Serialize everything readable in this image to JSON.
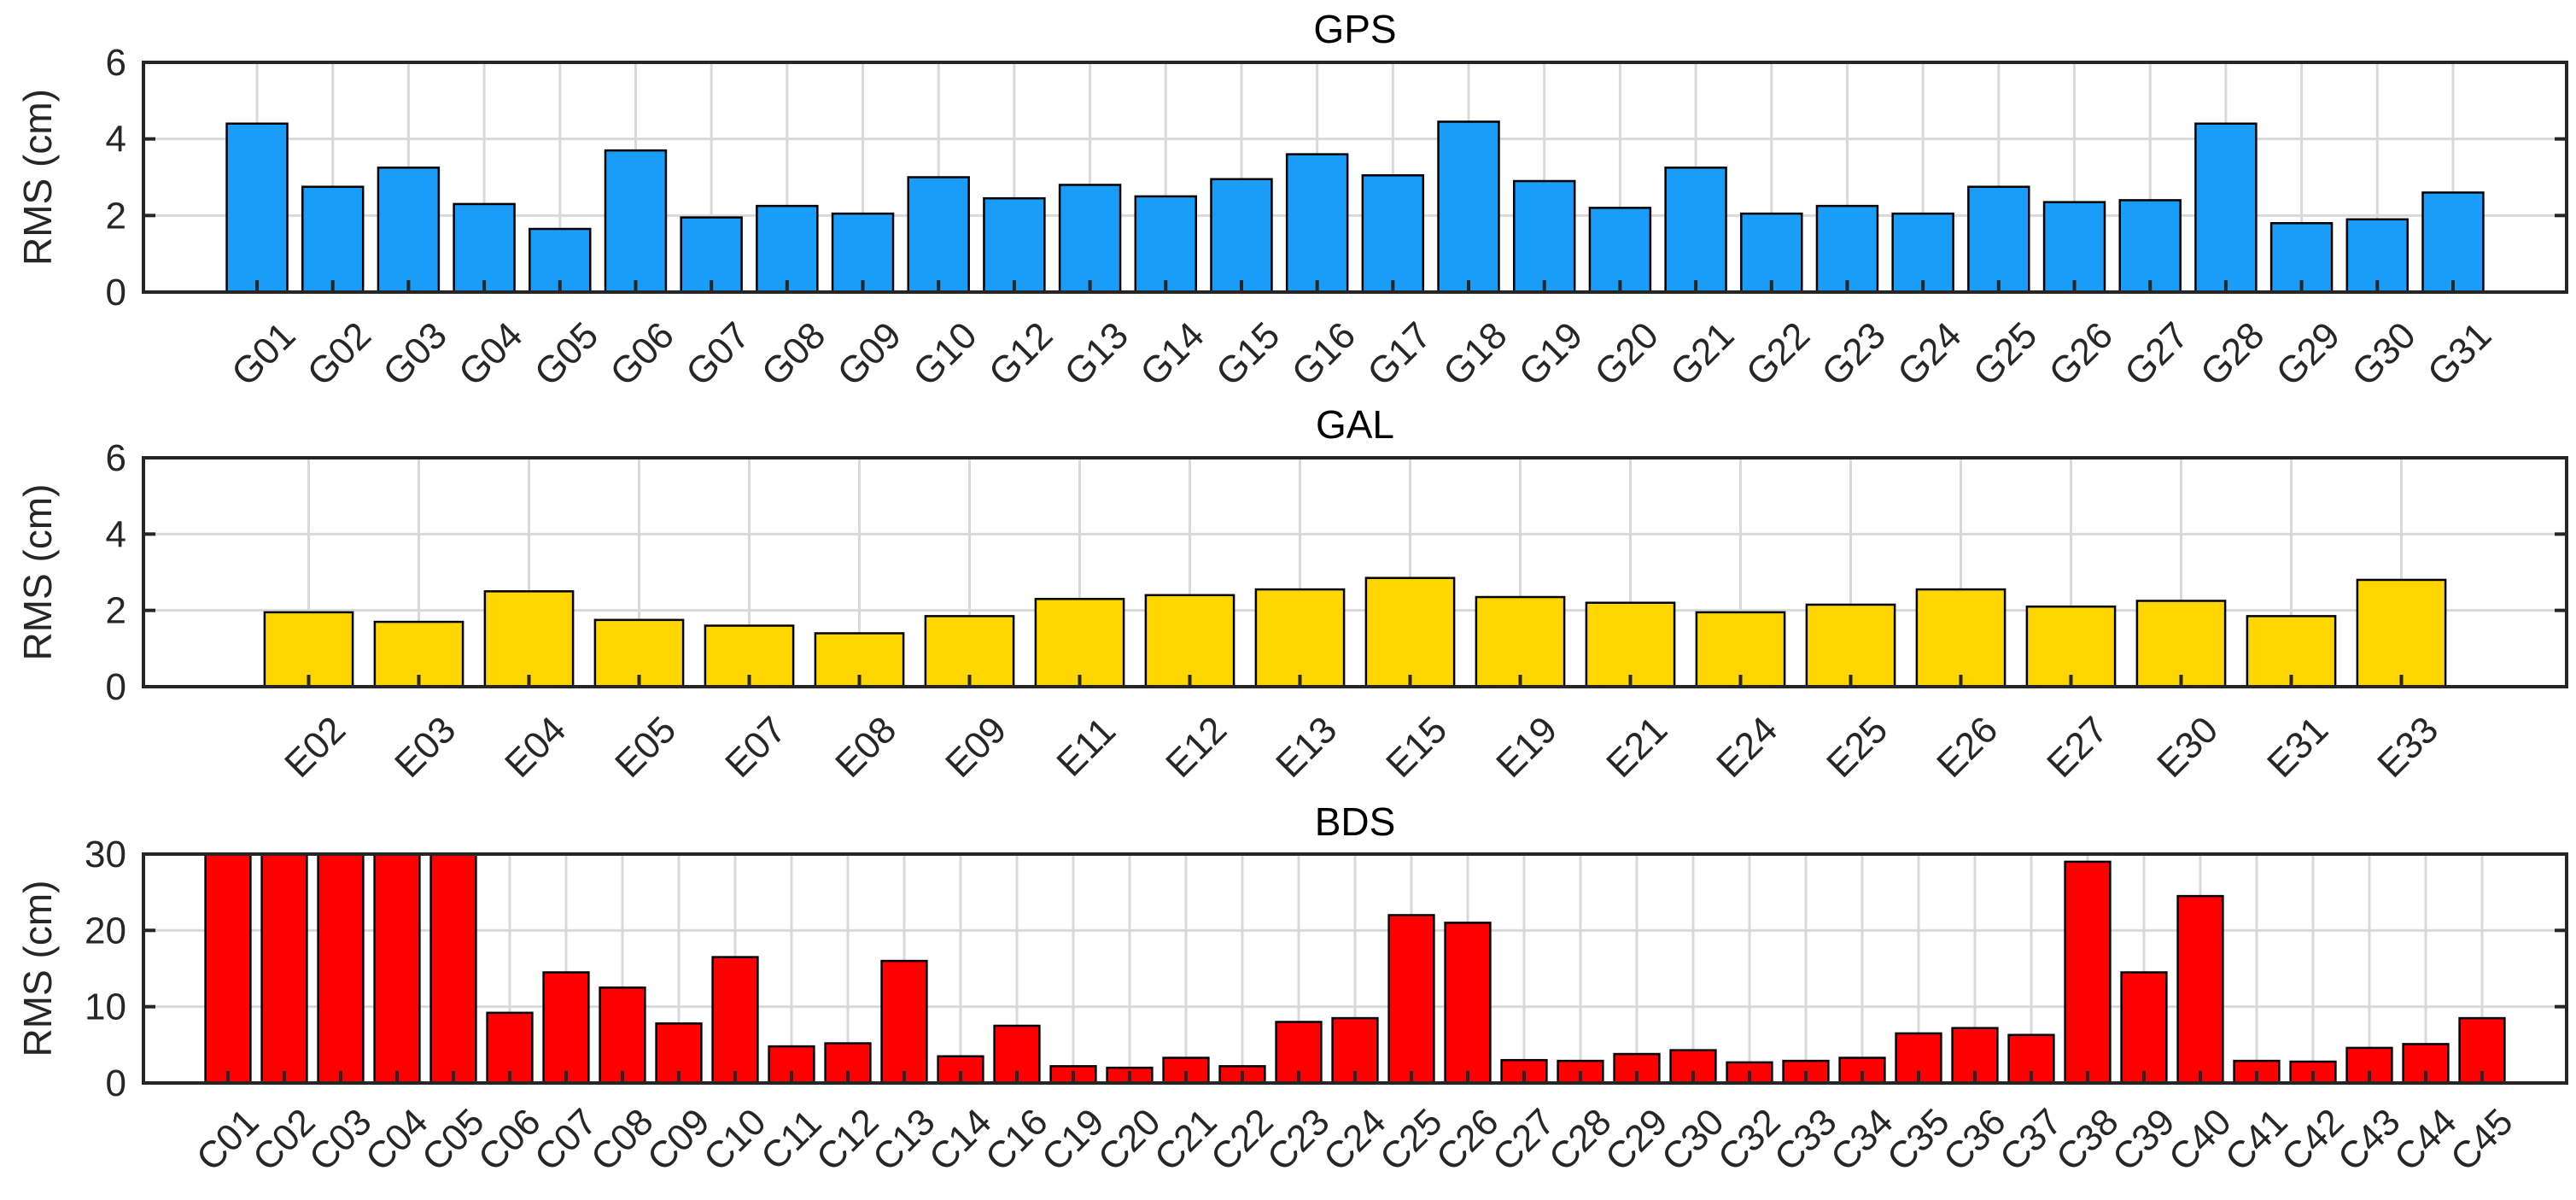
{
  "chart_data": [
    {
      "type": "bar",
      "title": "GPS",
      "ylabel": "RMS (cm)",
      "xlabel": "",
      "ylim": [
        0,
        6
      ],
      "yticks": [
        0,
        2,
        4,
        6
      ],
      "color": "#1a9cf9",
      "grid": true,
      "categories": [
        "G01",
        "G02",
        "G03",
        "G04",
        "G05",
        "G06",
        "G07",
        "G08",
        "G09",
        "G10",
        "G12",
        "G13",
        "G14",
        "G15",
        "G16",
        "G17",
        "G18",
        "G19",
        "G20",
        "G21",
        "G22",
        "G23",
        "G24",
        "G25",
        "G26",
        "G27",
        "G28",
        "G29",
        "G30",
        "G31"
      ],
      "values": [
        4.4,
        2.75,
        3.25,
        2.3,
        1.65,
        3.7,
        1.95,
        2.25,
        2.05,
        3.0,
        2.45,
        2.8,
        2.5,
        2.95,
        3.6,
        3.05,
        4.45,
        2.9,
        2.2,
        3.25,
        2.05,
        2.25,
        2.05,
        2.75,
        2.35,
        2.4,
        4.4,
        1.8,
        1.9,
        2.6
      ]
    },
    {
      "type": "bar",
      "title": "GAL",
      "ylabel": "RMS (cm)",
      "xlabel": "",
      "ylim": [
        0,
        6
      ],
      "yticks": [
        0,
        2,
        4,
        6
      ],
      "color": "#ffd600",
      "grid": true,
      "categories": [
        "E02",
        "E03",
        "E04",
        "E05",
        "E07",
        "E08",
        "E09",
        "E11",
        "E12",
        "E13",
        "E15",
        "E19",
        "E21",
        "E24",
        "E25",
        "E26",
        "E27",
        "E30",
        "E31",
        "E33"
      ],
      "values": [
        1.95,
        1.7,
        2.5,
        1.75,
        1.6,
        1.4,
        1.85,
        2.3,
        2.4,
        2.55,
        2.85,
        2.35,
        2.2,
        1.95,
        2.15,
        2.55,
        2.1,
        2.25,
        1.85,
        2.8
      ]
    },
    {
      "type": "bar",
      "title": "BDS",
      "ylabel": "RMS (cm)",
      "xlabel": "",
      "ylim": [
        0,
        30
      ],
      "yticks": [
        0,
        10,
        20,
        30
      ],
      "color": "#ff0000",
      "grid": true,
      "categories": [
        "C01",
        "C02",
        "C03",
        "C04",
        "C05",
        "C06",
        "C07",
        "C08",
        "C09",
        "C10",
        "C11",
        "C12",
        "C13",
        "C14",
        "C16",
        "C19",
        "C20",
        "C21",
        "C22",
        "C23",
        "C24",
        "C25",
        "C26",
        "C27",
        "C28",
        "C29",
        "C30",
        "C32",
        "C33",
        "C34",
        "C35",
        "C36",
        "C37",
        "C38",
        "C39",
        "C40",
        "C41",
        "C42",
        "C43",
        "C44",
        "C45"
      ],
      "values": [
        30,
        30,
        30,
        30,
        30,
        9.2,
        14.5,
        12.5,
        7.8,
        16.5,
        4.8,
        5.2,
        16.0,
        3.5,
        7.5,
        2.2,
        2.0,
        3.3,
        2.2,
        8.0,
        8.5,
        22.0,
        21.0,
        3.0,
        2.9,
        3.8,
        4.3,
        2.7,
        2.9,
        3.3,
        6.5,
        7.2,
        6.3,
        29.0,
        14.5,
        24.5,
        2.9,
        2.8,
        4.6,
        5.1,
        8.5
      ]
    }
  ]
}
